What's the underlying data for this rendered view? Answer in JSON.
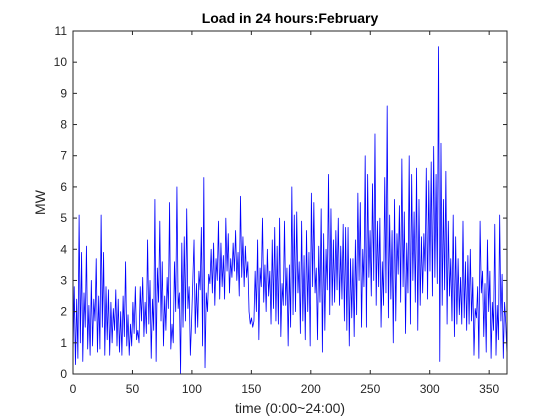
{
  "chart_data": {
    "type": "line",
    "title": "Load in 24 hours:February",
    "xlabel": "time (0:00~24:00)",
    "ylabel": "MW",
    "xlim": [
      0,
      365
    ],
    "ylim": [
      0,
      11
    ],
    "xticks": [
      0,
      50,
      100,
      150,
      200,
      250,
      300,
      350
    ],
    "yticks": [
      0,
      1,
      2,
      3,
      4,
      5,
      6,
      7,
      8,
      9,
      10,
      11
    ],
    "grid": false,
    "legend": "none",
    "series": [
      {
        "color": "#0000ff",
        "values": [
          0.6,
          2.8,
          0.3,
          2.4,
          0.5,
          5.1,
          1.0,
          3.9,
          0.4,
          2.6,
          1.5,
          4.1,
          0.8,
          2.2,
          0.6,
          3.0,
          0.9,
          2.4,
          1.7,
          3.7,
          0.7,
          2.5,
          0.8,
          5.1,
          1.5,
          3.9,
          0.6,
          2.8,
          1.1,
          2.7,
          0.6,
          2.3,
          1.0,
          2.1,
          1.4,
          2.7,
          0.9,
          2.4,
          0.7,
          2.0,
          0.6,
          2.5,
          1.2,
          3.6,
          0.9,
          1.9,
          0.6,
          1.6,
          0.9,
          2.3,
          1.3,
          2.8,
          1.1,
          1.4,
          1.0,
          2.8,
          1.7,
          3.1,
          1.2,
          2.3,
          1.3,
          4.3,
          1.6,
          3.0,
          0.5,
          2.4,
          1.4,
          5.6,
          0.4,
          3.4,
          2.3,
          4.9,
          1.7,
          3.6,
          0.9,
          2.5,
          1.4,
          3.1,
          2.1,
          5.5,
          0.8,
          1.6,
          1.0,
          3.6,
          2.0,
          6.0,
          2.1,
          2.6,
          0.0,
          4.2,
          1.5,
          4.4,
          1.7,
          5.3,
          2.1,
          2.8,
          0.6,
          1.7,
          3.0,
          4.3,
          1.3,
          2.9,
          1.5,
          3.3,
          2.7,
          4.7,
          0.9,
          6.3,
          0.2,
          2.6,
          2.0,
          3.2,
          2.9,
          4.0,
          2.6,
          4.2,
          2.2,
          3.7,
          3.0,
          4.9,
          2.4,
          4.2,
          2.8,
          3.8,
          2.4,
          5.0,
          3.3,
          4.5,
          2.6,
          3.7,
          3.1,
          4.2,
          3.3,
          4.6,
          3.0,
          3.9,
          2.5,
          5.7,
          3.1,
          4.4,
          2.8,
          4.1,
          3.1,
          3.6,
          2.0,
          1.6,
          1.8,
          1.5,
          1.7,
          3.3,
          2.0,
          4.3,
          1.1,
          3.4,
          2.8,
          5.0,
          2.3,
          3.5,
          2.0,
          4.0,
          2.5,
          3.3,
          1.6,
          4.3,
          2.1,
          4.7,
          1.7,
          4.1,
          1.6,
          5.0,
          1.2,
          2.9,
          2.2,
          4.9,
          2.2,
          3.4,
          0.9,
          3.5,
          1.5,
          6.0,
          1.9,
          5.1,
          2.0,
          5.2,
          2.6,
          3.6,
          1.3,
          4.9,
          1.7,
          3.8,
          1.1,
          4.6,
          2.0,
          3.9,
          0.9,
          5.8,
          2.8,
          5.5,
          2.6,
          3.4,
          1.1,
          4.1,
          2.3,
          5.3,
          0.7,
          4.5,
          1.4,
          4.0,
          2.7,
          6.4,
          1.9,
          5.3,
          2.2,
          4.3,
          2.3,
          4.6,
          2.7,
          5.0,
          2.2,
          4.1,
          2.4,
          4.8,
          1.7,
          4.7,
          1.4,
          4.7,
          0.9,
          3.7,
          1.8,
          3.7,
          1.2,
          4.3,
          1.9,
          5.8,
          3.0,
          5.5,
          1.5,
          4.0,
          2.8,
          7.0,
          1.5,
          6.4,
          3.1,
          4.6,
          2.5,
          6.1,
          3.0,
          7.7,
          2.2,
          4.9,
          2.8,
          5.0,
          1.5,
          3.6,
          2.2,
          6.3,
          2.6,
          8.6,
          1.8,
          5.1,
          2.4,
          4.6,
          1.0,
          5.6,
          1.7,
          4.5,
          3.2,
          5.4,
          2.3,
          6.9,
          2.8,
          5.2,
          1.3,
          4.2,
          2.6,
          7.0,
          1.6,
          6.4,
          3.0,
          5.2,
          2.3,
          6.6,
          1.4,
          5.6,
          2.2,
          4.4,
          2.6,
          4.5,
          3.3,
          6.6,
          2.4,
          6.2,
          3.3,
          6.8,
          2.5,
          7.3,
          3.1,
          6.4,
          2.9,
          10.5,
          0.4,
          7.4,
          2.2,
          5.6,
          2.7,
          6.5,
          1.6,
          4.9,
          2.5,
          3.7,
          1.7,
          5.1,
          1.2,
          4.4,
          1.6,
          3.7,
          1.9,
          3.1,
          1.6,
          4.9,
          1.8,
          3.6,
          1.4,
          3.8,
          1.6,
          4.0,
          1.7,
          3.1,
          0.6,
          2.1,
          1.8,
          2.8,
          0.5,
          4.9,
          2.6,
          3.3,
          1.2,
          2.9,
          0.7,
          4.3,
          2.0,
          3.3,
          0.5,
          2.3,
          1.4,
          4.8,
          0.6,
          2.2,
          1.1,
          5.1,
          1.7,
          3.2,
          0.5,
          2.3,
          1.6,
          0.6
        ]
      }
    ]
  }
}
